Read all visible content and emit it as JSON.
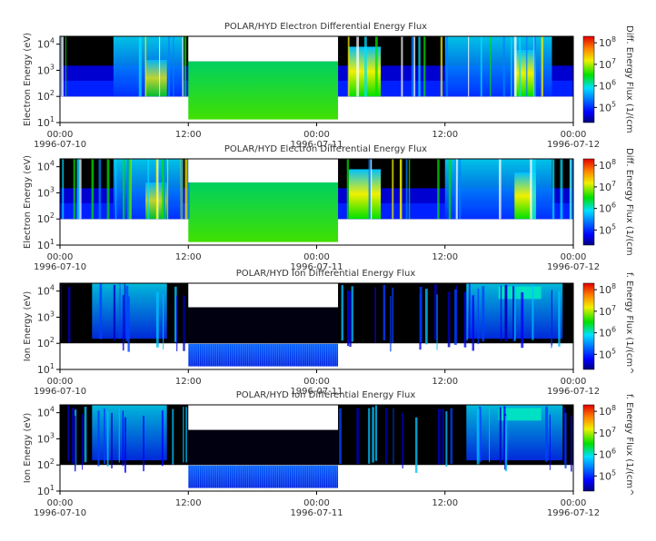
{
  "chart_data": [
    {
      "type": "heatmap",
      "title": "POLAR/HYD  Electron Differential Energy Flux",
      "ylabel": "Electron Energy (eV)",
      "colorbar_label": "Diff. Energy Flux (1/(cm",
      "yscale": "log",
      "ylim": [
        10,
        20000
      ],
      "y_ticks": [
        {
          "base": "10",
          "exp": "1"
        },
        {
          "base": "10",
          "exp": "2"
        },
        {
          "base": "10",
          "exp": "3"
        },
        {
          "base": "10",
          "exp": "4"
        }
      ],
      "x_ticks": [
        {
          "time": "00:00",
          "date": "1996-07-10"
        },
        {
          "time": "12:00",
          "date": ""
        },
        {
          "time": "00:00",
          "date": "1996-07-11"
        },
        {
          "time": "12:00",
          "date": ""
        },
        {
          "time": "00:00",
          "date": "1996-07-12"
        }
      ],
      "colorbar_ticks": [
        {
          "base": "10",
          "exp": "5"
        },
        {
          "base": "10",
          "exp": "6"
        },
        {
          "base": "10",
          "exp": "7"
        },
        {
          "base": "10",
          "exp": "8"
        }
      ],
      "xlim": [
        "1996-07-10 00:00",
        "1996-07-12 00:00"
      ],
      "data_gap": [
        "1996-07-10 12:00",
        "1996-07-11 02:00"
      ]
    },
    {
      "type": "heatmap",
      "title": "POLAR/HYD  Electron Differential Energy Flux",
      "ylabel": "Electron Energy (eV)",
      "colorbar_label": "Diff. Energy Flux (1/(cm",
      "yscale": "log",
      "ylim": [
        10,
        20000
      ],
      "y_ticks": [
        {
          "base": "10",
          "exp": "1"
        },
        {
          "base": "10",
          "exp": "2"
        },
        {
          "base": "10",
          "exp": "3"
        },
        {
          "base": "10",
          "exp": "4"
        }
      ],
      "x_ticks": [
        {
          "time": "00:00",
          "date": "1996-07-10"
        },
        {
          "time": "12:00",
          "date": ""
        },
        {
          "time": "00:00",
          "date": "1996-07-11"
        },
        {
          "time": "12:00",
          "date": ""
        },
        {
          "time": "00:00",
          "date": "1996-07-12"
        }
      ],
      "colorbar_ticks": [
        {
          "base": "10",
          "exp": "5"
        },
        {
          "base": "10",
          "exp": "6"
        },
        {
          "base": "10",
          "exp": "7"
        },
        {
          "base": "10",
          "exp": "8"
        }
      ],
      "xlim": [
        "1996-07-10 00:00",
        "1996-07-12 00:00"
      ],
      "data_gap": [
        "1996-07-10 12:00",
        "1996-07-11 02:00"
      ]
    },
    {
      "type": "heatmap",
      "title": "POLAR/HYD  Ion Differential Energy Flux",
      "ylabel": "Ion Energy (eV)",
      "colorbar_label": "f. Energy Flux (1/(cm^",
      "yscale": "log",
      "ylim": [
        10,
        20000
      ],
      "y_ticks": [
        {
          "base": "10",
          "exp": "1"
        },
        {
          "base": "10",
          "exp": "2"
        },
        {
          "base": "10",
          "exp": "3"
        },
        {
          "base": "10",
          "exp": "4"
        }
      ],
      "x_ticks": [
        {
          "time": "00:00",
          "date": "1996-07-10"
        },
        {
          "time": "12:00",
          "date": ""
        },
        {
          "time": "00:00",
          "date": "1996-07-11"
        },
        {
          "time": "12:00",
          "date": ""
        },
        {
          "time": "00:00",
          "date": "1996-07-12"
        }
      ],
      "colorbar_ticks": [
        {
          "base": "10",
          "exp": "5"
        },
        {
          "base": "10",
          "exp": "6"
        },
        {
          "base": "10",
          "exp": "7"
        },
        {
          "base": "10",
          "exp": "8"
        }
      ],
      "xlim": [
        "1996-07-10 00:00",
        "1996-07-12 00:00"
      ],
      "data_gap": [
        "1996-07-10 12:00",
        "1996-07-11 02:00"
      ]
    },
    {
      "type": "heatmap",
      "title": "POLAR/HYD  Ion Differential Energy Flux",
      "ylabel": "Ion Energy (eV)",
      "colorbar_label": "f. Energy Flux (1/(cm^",
      "yscale": "log",
      "ylim": [
        10,
        20000
      ],
      "y_ticks": [
        {
          "base": "10",
          "exp": "1"
        },
        {
          "base": "10",
          "exp": "2"
        },
        {
          "base": "10",
          "exp": "3"
        },
        {
          "base": "10",
          "exp": "4"
        }
      ],
      "x_ticks": [
        {
          "time": "00:00",
          "date": "1996-07-10"
        },
        {
          "time": "12:00",
          "date": ""
        },
        {
          "time": "00:00",
          "date": "1996-07-11"
        },
        {
          "time": "12:00",
          "date": ""
        },
        {
          "time": "00:00",
          "date": "1996-07-12"
        }
      ],
      "colorbar_ticks": [
        {
          "base": "10",
          "exp": "5"
        },
        {
          "base": "10",
          "exp": "6"
        },
        {
          "base": "10",
          "exp": "7"
        },
        {
          "base": "10",
          "exp": "8"
        }
      ],
      "xlim": [
        "1996-07-10 00:00",
        "1996-07-12 00:00"
      ],
      "data_gap": [
        "1996-07-10 12:00",
        "1996-07-11 02:00"
      ]
    }
  ],
  "colors": {
    "background_flux": "#000000",
    "gap": "#ffffff",
    "low": "#0000c8",
    "mid_blue": "#0080ff",
    "cyan": "#00e0ff",
    "green": "#00e000",
    "yellow": "#f0f000",
    "orange": "#ff8000",
    "high": "#e00000"
  }
}
